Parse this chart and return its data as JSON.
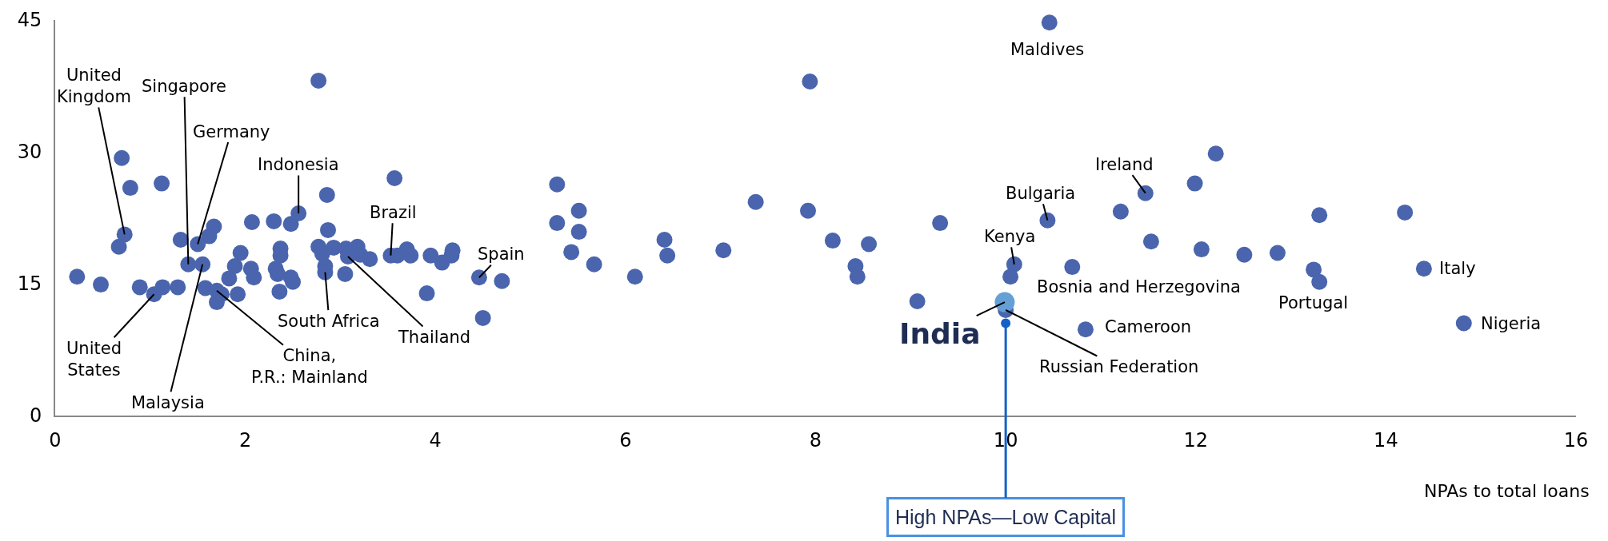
{
  "chart_data": {
    "type": "scatter",
    "xlabel": "NPAs to total loans",
    "xlim": [
      0,
      16
    ],
    "xticks": [
      0,
      2,
      4,
      6,
      8,
      10,
      12,
      14,
      16
    ],
    "ylim": [
      0,
      45
    ],
    "yticks": [
      0,
      15,
      30,
      45
    ],
    "grid": false,
    "marker": "circle",
    "series": [
      {
        "color": "#4a65ad",
        "x": [
          0.23,
          0.48,
          0.67,
          0.7,
          0.73,
          0.79,
          0.89,
          1.04,
          1.12,
          1.13,
          1.29,
          1.32,
          1.4,
          1.5,
          1.55,
          1.58,
          1.62,
          1.67,
          1.7,
          1.7,
          1.75,
          1.83,
          1.89,
          1.92,
          1.95,
          2.06,
          2.07,
          2.09,
          2.3,
          2.32,
          2.34,
          2.36,
          2.37,
          2.37,
          2.48,
          2.48,
          2.5,
          2.56,
          2.77,
          2.77,
          2.81,
          2.84,
          2.84,
          2.86,
          2.87,
          2.93,
          3.05,
          3.06,
          3.08,
          3.18,
          3.21,
          3.31,
          3.53,
          3.57,
          3.6,
          3.7,
          3.74,
          3.91,
          3.95,
          4.07,
          4.17,
          4.18,
          4.46,
          4.5,
          4.7,
          5.28,
          5.28,
          5.43,
          5.51,
          5.51,
          5.67,
          6.1,
          6.41,
          6.44,
          7.03,
          7.37,
          7.92,
          7.94,
          8.18,
          8.42,
          8.44,
          8.56,
          9.07,
          9.31,
          10.0,
          10.05,
          10.09,
          10.44,
          10.46,
          10.7,
          10.84,
          11.21,
          11.47,
          11.53,
          11.99,
          12.06,
          12.21,
          12.51,
          12.86,
          13.24,
          13.3,
          13.3,
          14.2,
          14.4,
          14.82
        ],
        "values": [
          15.8,
          14.9,
          19.2,
          29.3,
          20.6,
          25.9,
          14.6,
          13.8,
          26.4,
          14.6,
          14.6,
          20.0,
          17.2,
          19.5,
          17.2,
          14.5,
          20.4,
          21.5,
          14.2,
          12.9,
          13.8,
          15.6,
          17.0,
          13.8,
          18.5,
          16.7,
          22.0,
          15.7,
          22.1,
          16.7,
          16.1,
          14.1,
          19.0,
          18.2,
          21.8,
          15.7,
          15.2,
          23.0,
          38.1,
          19.2,
          18.4,
          17.0,
          16.3,
          25.1,
          21.1,
          19.1,
          16.1,
          19.0,
          18.1,
          19.2,
          18.3,
          17.8,
          18.2,
          27.0,
          18.2,
          18.9,
          18.2,
          13.9,
          18.2,
          17.4,
          18.2,
          18.8,
          15.7,
          11.1,
          15.3,
          26.3,
          21.9,
          18.6,
          23.3,
          20.9,
          17.2,
          15.8,
          20.0,
          18.2,
          18.8,
          24.3,
          23.3,
          38.0,
          19.9,
          17.0,
          15.8,
          19.5,
          13.0,
          21.9,
          12.0,
          15.8,
          17.2,
          22.2,
          44.7,
          16.9,
          9.8,
          23.2,
          25.3,
          19.8,
          26.4,
          18.9,
          29.8,
          18.3,
          18.5,
          16.6,
          22.8,
          15.2,
          23.1,
          16.7,
          10.5
        ]
      },
      {
        "color": "#64a0d5",
        "x": [
          9.99
        ],
        "values": [
          12.9
        ]
      }
    ],
    "annotations": [
      {
        "text": "United\nKingdom",
        "x": 0.73,
        "y": 20.6
      },
      {
        "text": "Singapore",
        "x": 1.4,
        "y": 17.2
      },
      {
        "text": "Germany",
        "x": 1.5,
        "y": 19.5
      },
      {
        "text": "Indonesia",
        "x": 2.56,
        "y": 23.0
      },
      {
        "text": "Brazil",
        "x": 3.53,
        "y": 18.2
      },
      {
        "text": "Spain",
        "x": 4.46,
        "y": 15.7
      },
      {
        "text": "United\nStates",
        "x": 1.04,
        "y": 13.8
      },
      {
        "text": "Malaysia",
        "x": 1.55,
        "y": 17.2
      },
      {
        "text": "China,\nP.R.: Mainland",
        "x": 1.7,
        "y": 14.2
      },
      {
        "text": "South Africa",
        "x": 2.84,
        "y": 16.3
      },
      {
        "text": "Thailand",
        "x": 3.08,
        "y": 18.1
      },
      {
        "text": "Maldives",
        "x": 10.46,
        "y": 44.7
      },
      {
        "text": "Ireland",
        "x": 11.47,
        "y": 25.3
      },
      {
        "text": "Bulgaria",
        "x": 10.44,
        "y": 22.2
      },
      {
        "text": "Kenya",
        "x": 10.09,
        "y": 17.2
      },
      {
        "text": "Bosnia and Herzegovina",
        "x": 10.05,
        "y": 15.8
      },
      {
        "text": "Russian Federation",
        "x": 10.0,
        "y": 12.0
      },
      {
        "text": "India",
        "x": 9.99,
        "y": 12.9
      },
      {
        "text": "Cameroon",
        "x": 10.84,
        "y": 9.8
      },
      {
        "text": "Portugal",
        "x": 13.3,
        "y": 15.2
      },
      {
        "text": "Italy",
        "x": 14.4,
        "y": 16.7
      },
      {
        "text": "Nigeria",
        "x": 14.82,
        "y": 10.5
      },
      {
        "text": "High NPAs—Low Capital",
        "x": 10,
        "y": 10.5
      }
    ]
  }
}
